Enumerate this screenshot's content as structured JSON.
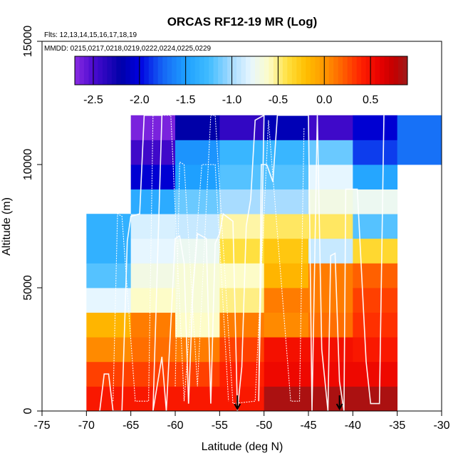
{
  "chart_data": {
    "type": "heatmap",
    "title": "ORCAS RF12-19 MR (Log)",
    "xlabel": "Latitude (deg N)",
    "ylabel": "Altitude (m)",
    "xlim": [
      -75,
      -30
    ],
    "ylim": [
      0,
      15000
    ],
    "x_ticks": [
      -75,
      -70,
      -65,
      -60,
      -55,
      -50,
      -45,
      -40,
      -35,
      -30
    ],
    "x_tick_labels": [
      "-75",
      "-70",
      "-65",
      "-60",
      "-55",
      "-50",
      "-45",
      "-40",
      "-35",
      "-30"
    ],
    "y_ticks": [
      0,
      5000,
      10000,
      15000
    ],
    "y_tick_labels": [
      "0",
      "5000",
      "10000",
      "15000"
    ],
    "flights_label": "Flts: 12,13,14,15,16,17,18,19",
    "dates_label": "MMDD: 0215,0217,0218,0219,0222,0224,0225,0229",
    "colorbar": {
      "range": [
        -2.7,
        0.9
      ],
      "ticks": [
        -2.5,
        -2.0,
        -1.5,
        -1.0,
        -0.5,
        0.0,
        0.5
      ],
      "tick_labels": [
        "-2.5",
        "-2.0",
        "-1.5",
        "-1.0",
        "-0.5",
        "0.0",
        "0.5"
      ],
      "stops": [
        {
          "v": -2.7,
          "c": "#8a2be2"
        },
        {
          "v": -2.5,
          "c": "#4b0bd0"
        },
        {
          "v": -2.2,
          "c": "#0000a8"
        },
        {
          "v": -2.0,
          "c": "#0000e0"
        },
        {
          "v": -1.75,
          "c": "#1565f5"
        },
        {
          "v": -1.5,
          "c": "#1ea0ff"
        },
        {
          "v": -1.25,
          "c": "#40bcff"
        },
        {
          "v": -1.0,
          "c": "#a8dcff"
        },
        {
          "v": -0.8,
          "c": "#e6f6ff"
        },
        {
          "v": -0.6,
          "c": "#fdfcc8"
        },
        {
          "v": -0.4,
          "c": "#ffe040"
        },
        {
          "v": -0.2,
          "c": "#ffbf00"
        },
        {
          "v": 0.0,
          "c": "#ff9800"
        },
        {
          "v": 0.2,
          "c": "#ff6000"
        },
        {
          "v": 0.4,
          "c": "#ff2000"
        },
        {
          "v": 0.6,
          "c": "#e80000"
        },
        {
          "v": 0.75,
          "c": "#c40000"
        },
        {
          "v": 0.9,
          "c": "#9e1a1a"
        }
      ]
    },
    "cell_lat_width": 5,
    "cell_alt_height": 1000,
    "cells": [
      {
        "lat": -70,
        "rows": [
          0.45,
          0.3,
          0.05,
          -0.15,
          -0.8,
          -1.2,
          -1.35,
          -1.35
        ]
      },
      {
        "lat": -65,
        "rows": [
          0.45,
          0.3,
          0.15,
          0.1,
          -0.6,
          -0.7,
          -0.8,
          -0.85,
          -1.4,
          -2.05,
          -2.45,
          -2.65
        ]
      },
      {
        "lat": -60,
        "rows": [
          0.45,
          0.3,
          0.1,
          -0.6,
          -0.65,
          -0.65,
          -0.75,
          -0.9,
          -1.15,
          -1.5,
          -1.55,
          -2.2
        ]
      },
      {
        "lat": -55,
        "rows": [
          0.45,
          0.4,
          0.3,
          0.1,
          -0.5,
          -0.6,
          -0.4,
          -0.55,
          -1.0,
          -1.2,
          -1.3,
          -2.4
        ]
      },
      {
        "lat": -50,
        "rows": [
          0.85,
          0.55,
          0.5,
          0.05,
          0.1,
          -0.15,
          -0.25,
          -0.45,
          -1.0,
          -1.2,
          -1.3,
          -2.15
        ]
      },
      {
        "lat": -45,
        "rows": [
          0.85,
          0.55,
          0.5,
          0.15,
          0.1,
          0.1,
          -0.9,
          -0.45,
          -0.7,
          -0.8,
          -1.15,
          -2.45
        ]
      },
      {
        "lat": -40,
        "rows": [
          0.85,
          0.55,
          0.45,
          0.35,
          0.3,
          0.2,
          -0.35,
          -1.2,
          -0.75,
          -1.45,
          -1.85,
          -2.05
        ]
      },
      {
        "lat": -35,
        "rows": [
          null,
          null,
          null,
          null,
          null,
          null,
          null,
          null,
          null,
          null,
          -1.7,
          -1.7
        ]
      }
    ],
    "arrows_at_lat": [
      -53,
      -41.5
    ]
  }
}
